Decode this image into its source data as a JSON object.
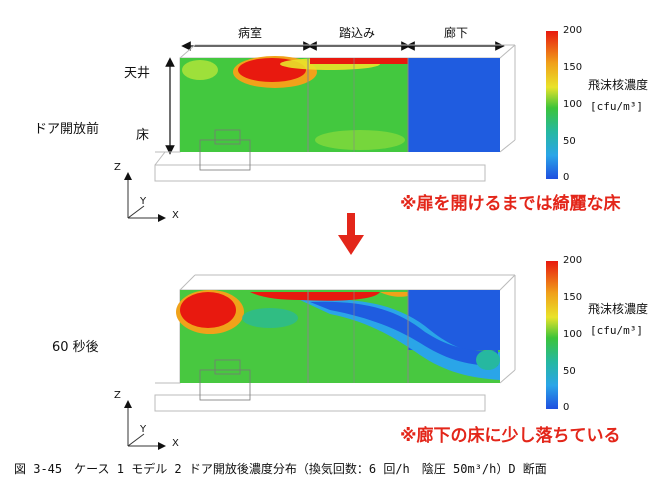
{
  "zones": {
    "room": "病室",
    "entry": "踏込み",
    "corridor": "廊下"
  },
  "labels": {
    "ceiling": "天井",
    "floor": "床",
    "before": "ドア開放前",
    "after": "60 秒後"
  },
  "axes": {
    "z": "Z",
    "y": "Y",
    "x": "X"
  },
  "colorbar": {
    "title": "飛沫核濃度",
    "unit": "[cfu/m³]",
    "ticks": [
      "200",
      "150",
      "100",
      "50",
      "0"
    ],
    "range": [
      0,
      200
    ]
  },
  "notes": {
    "before": "※扉を開けるまでは綺麗な床",
    "after": "※廊下の床に少し落ちている"
  },
  "caption": "図 3-45　ケース 1 モデル 2 ドア開放後濃度分布（換気回数：6 回/h　陰圧 50m³/h）D 断面",
  "colors": {
    "arrow": "#e3261a",
    "high": "#e8190f",
    "mid": "#3cc43a",
    "low": "#1f5ce0"
  }
}
